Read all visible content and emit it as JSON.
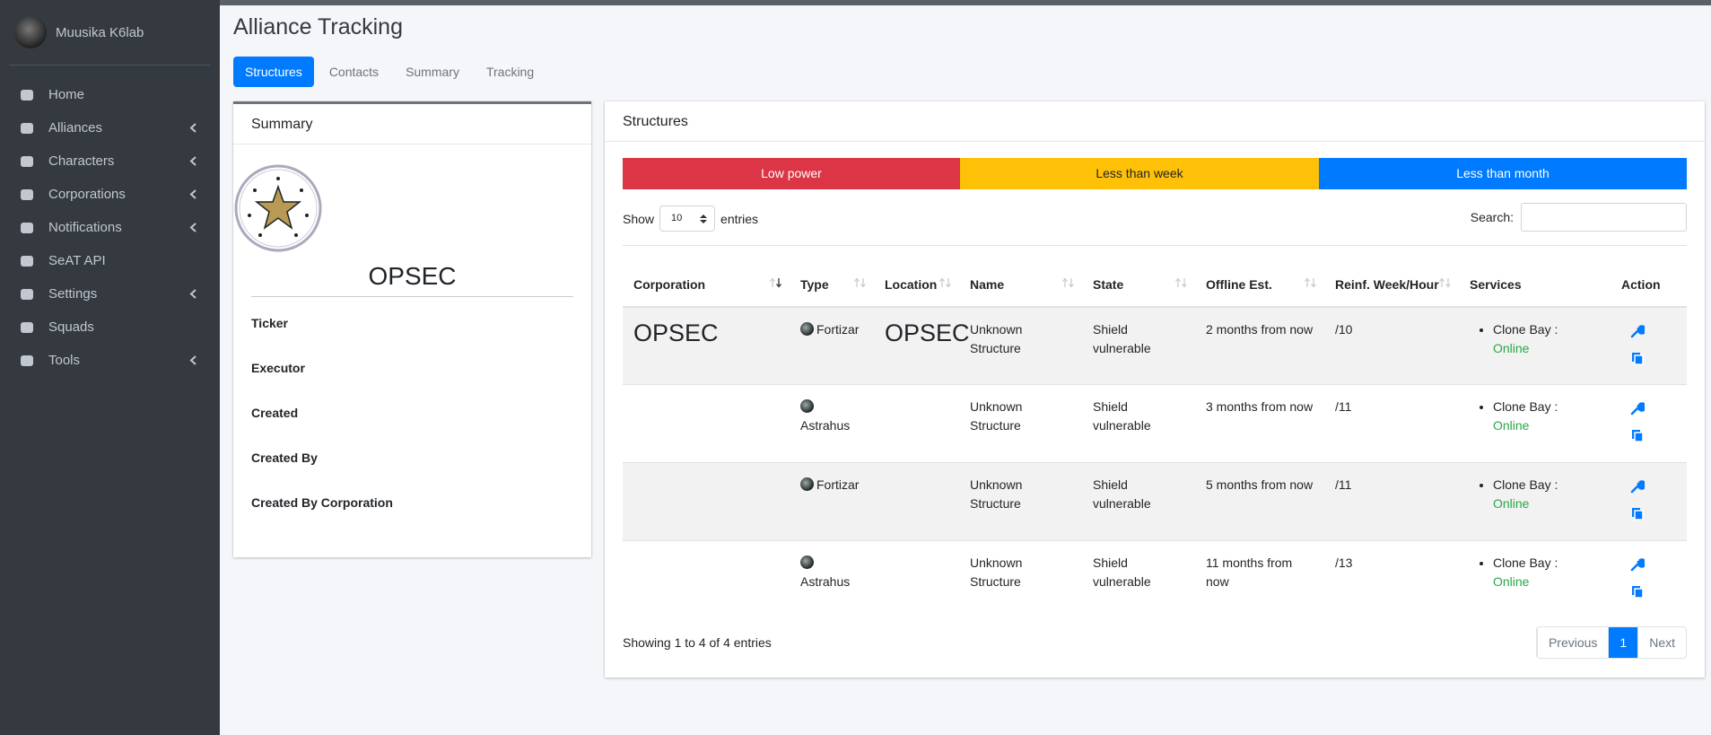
{
  "user": {
    "name": "Muusika K6lab"
  },
  "menu": [
    {
      "label": "Home",
      "expandable": false
    },
    {
      "label": "Alliances",
      "expandable": true
    },
    {
      "label": "Characters",
      "expandable": true
    },
    {
      "label": "Corporations",
      "expandable": true
    },
    {
      "label": "Notifications",
      "expandable": true
    },
    {
      "label": "SeAT API",
      "expandable": false
    },
    {
      "label": "Settings",
      "expandable": true
    },
    {
      "label": "Squads",
      "expandable": false
    },
    {
      "label": "Tools",
      "expandable": true
    }
  ],
  "page": {
    "title": "Alliance Tracking",
    "tabs": [
      "Structures",
      "Contacts",
      "Summary",
      "Tracking"
    ]
  },
  "summary": {
    "title": "Summary",
    "name": "OPSEC",
    "fields": [
      "Ticker",
      "Executor",
      "Created",
      "Created By",
      "Created By Corporation"
    ]
  },
  "structures": {
    "title": "Structures",
    "legend": [
      "Low power",
      "Less than week",
      "Less than month"
    ],
    "show": "Show",
    "page_length": "10",
    "entries": "entries",
    "search": "Search:",
    "columns": [
      {
        "label": "Corporation",
        "sortable": true
      },
      {
        "label": "Type",
        "sortable": true
      },
      {
        "label": "Location",
        "sortable": true
      },
      {
        "label": "Name",
        "sortable": true
      },
      {
        "label": "State",
        "sortable": true
      },
      {
        "label": "Offline Est.",
        "sortable": true
      },
      {
        "label": "Reinf. Week/Hour",
        "sortable": true
      },
      {
        "label": "Services",
        "sortable": false
      },
      {
        "label": "Action",
        "sortable": false
      }
    ],
    "rows": [
      {
        "corporation": "OPSEC",
        "type": "Fortizar",
        "location": "OPSEC",
        "name": "Unknown Structure",
        "state": "Shield vulnerable",
        "offline": "2 months from now",
        "reinforce": "/10",
        "service": "Clone Bay :",
        "status": "Online"
      },
      {
        "type": "Astrahus",
        "name": "Unknown Structure",
        "state": "Shield vulnerable",
        "offline": "3 months from now",
        "reinforce": "/11",
        "service": "Clone Bay :",
        "status": "Online"
      },
      {
        "type": "Fortizar",
        "name": "Unknown Structure",
        "state": "Shield vulnerable",
        "offline": "5 months from now",
        "reinforce": "/11",
        "service": "Clone Bay :",
        "status": "Online"
      },
      {
        "type": "Astrahus",
        "name": "Unknown Structure",
        "state": "Shield vulnerable",
        "offline": "11 months from now",
        "reinforce": "/13",
        "service": "Clone Bay :",
        "status": "Online"
      }
    ],
    "info": "Showing 1 to 4 of 4 entries",
    "pagination": [
      "Previous",
      "1",
      "Next"
    ]
  }
}
